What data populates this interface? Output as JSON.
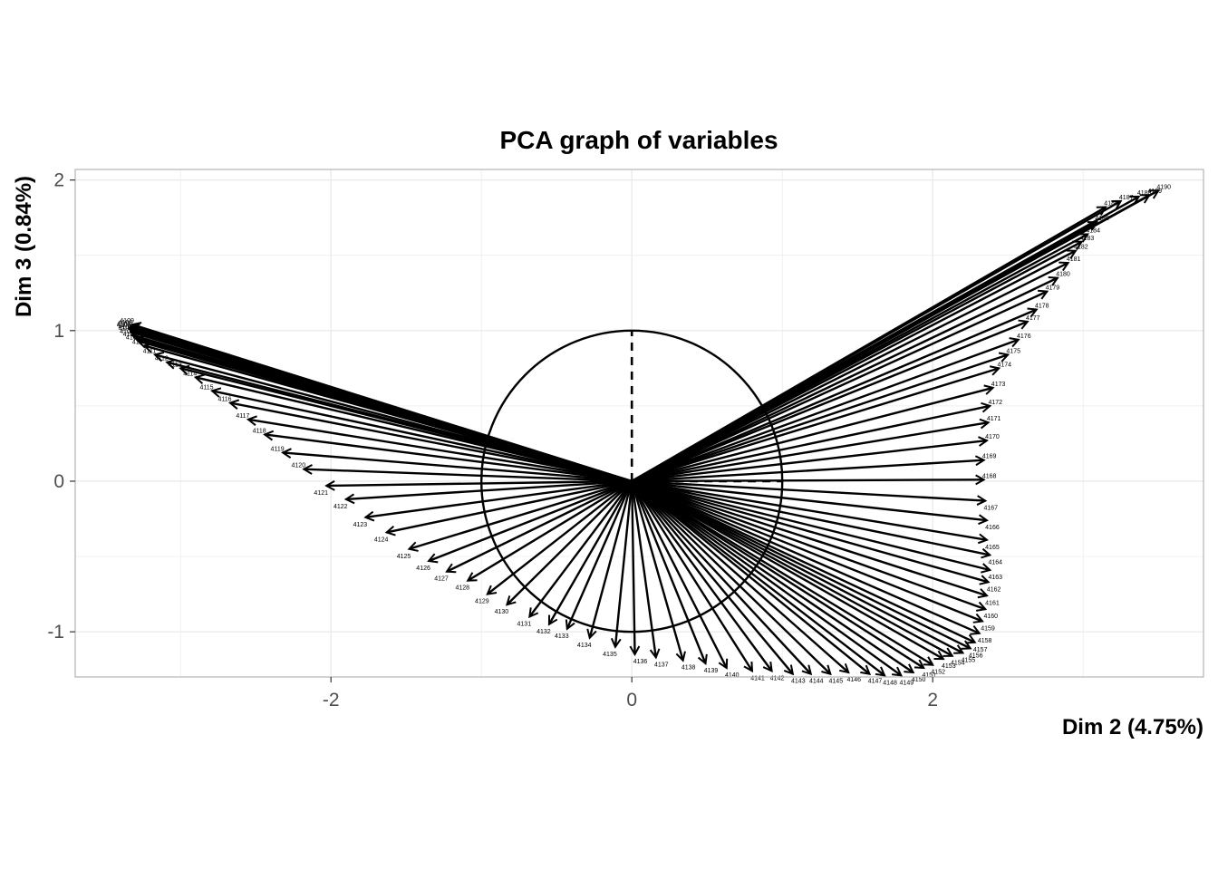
{
  "chart_data": {
    "type": "scatter",
    "title": "PCA graph of variables",
    "xlabel": "Dim 2 (4.75%)",
    "ylabel": "Dim 3 (0.84%)",
    "xlim": [
      -3.7,
      3.8
    ],
    "ylim": [
      -1.3,
      2.07
    ],
    "x_ticks": [
      -2,
      0,
      2
    ],
    "y_ticks": [
      -1,
      0,
      1,
      2
    ],
    "x_tick_labels": [
      "-2",
      "0",
      "2"
    ],
    "y_tick_labels": [
      "-1",
      "0",
      "1",
      "2"
    ],
    "grid": true,
    "unit_circle": true,
    "colors": {
      "arrows": "#000000",
      "grid": "#ebebeb",
      "panel_border": "#b3b3b3",
      "tick_text": "#4d4d4d"
    },
    "variables": [
      {
        "label": "4109",
        "x": -3.32,
        "y": 1.04
      },
      {
        "label": "4108",
        "x": -3.33,
        "y": 1.03
      },
      {
        "label": "4107",
        "x": -3.34,
        "y": 1.02
      },
      {
        "label": "4106",
        "x": -3.34,
        "y": 1.01
      },
      {
        "label": "4105",
        "x": -3.33,
        "y": 1.0
      },
      {
        "label": "4104",
        "x": -3.33,
        "y": 0.99
      },
      {
        "label": "4103",
        "x": -3.32,
        "y": 0.97
      },
      {
        "label": "4102",
        "x": -3.3,
        "y": 0.95
      },
      {
        "label": "4101",
        "x": -3.28,
        "y": 0.93
      },
      {
        "label": "4110",
        "x": -3.24,
        "y": 0.9
      },
      {
        "label": "4111",
        "x": -3.17,
        "y": 0.84
      },
      {
        "label": "4112",
        "x": -3.09,
        "y": 0.79
      },
      {
        "label": "4113",
        "x": -3.0,
        "y": 0.75
      },
      {
        "label": "4114",
        "x": -2.9,
        "y": 0.69
      },
      {
        "label": "4115",
        "x": -2.79,
        "y": 0.6
      },
      {
        "label": "4116",
        "x": -2.67,
        "y": 0.52
      },
      {
        "label": "4117",
        "x": -2.55,
        "y": 0.41
      },
      {
        "label": "4118",
        "x": -2.44,
        "y": 0.31
      },
      {
        "label": "4119",
        "x": -2.32,
        "y": 0.19
      },
      {
        "label": "4120",
        "x": -2.18,
        "y": 0.08
      },
      {
        "label": "4121",
        "x": -2.03,
        "y": -0.03
      },
      {
        "label": "4122",
        "x": -1.9,
        "y": -0.12
      },
      {
        "label": "4123",
        "x": -1.77,
        "y": -0.24
      },
      {
        "label": "4124",
        "x": -1.63,
        "y": -0.34
      },
      {
        "label": "4125",
        "x": -1.48,
        "y": -0.45
      },
      {
        "label": "4126",
        "x": -1.35,
        "y": -0.53
      },
      {
        "label": "4127",
        "x": -1.23,
        "y": -0.6
      },
      {
        "label": "4128",
        "x": -1.09,
        "y": -0.66
      },
      {
        "label": "4129",
        "x": -0.96,
        "y": -0.75
      },
      {
        "label": "4130",
        "x": -0.83,
        "y": -0.82
      },
      {
        "label": "4131",
        "x": -0.68,
        "y": -0.9
      },
      {
        "label": "4132",
        "x": -0.55,
        "y": -0.95
      },
      {
        "label": "4133",
        "x": -0.43,
        "y": -0.98
      },
      {
        "label": "4134",
        "x": -0.28,
        "y": -1.04
      },
      {
        "label": "4135",
        "x": -0.11,
        "y": -1.1
      },
      {
        "label": "4136",
        "x": 0.02,
        "y": -1.15
      },
      {
        "label": "4137",
        "x": 0.16,
        "y": -1.17
      },
      {
        "label": "4138",
        "x": 0.34,
        "y": -1.19
      },
      {
        "label": "4139",
        "x": 0.49,
        "y": -1.21
      },
      {
        "label": "4140",
        "x": 0.63,
        "y": -1.24
      },
      {
        "label": "4141",
        "x": 0.8,
        "y": -1.26
      },
      {
        "label": "4142",
        "x": 0.93,
        "y": -1.26
      },
      {
        "label": "4143",
        "x": 1.07,
        "y": -1.28
      },
      {
        "label": "4144",
        "x": 1.19,
        "y": -1.28
      },
      {
        "label": "4145",
        "x": 1.32,
        "y": -1.28
      },
      {
        "label": "4146",
        "x": 1.44,
        "y": -1.27
      },
      {
        "label": "4147",
        "x": 1.58,
        "y": -1.28
      },
      {
        "label": "4148",
        "x": 1.68,
        "y": -1.29
      },
      {
        "label": "4149",
        "x": 1.79,
        "y": -1.29
      },
      {
        "label": "4150",
        "x": 1.87,
        "y": -1.27
      },
      {
        "label": "4151",
        "x": 1.94,
        "y": -1.24
      },
      {
        "label": "4152",
        "x": 2.0,
        "y": -1.22
      },
      {
        "label": "4153",
        "x": 2.07,
        "y": -1.18
      },
      {
        "label": "4154",
        "x": 2.13,
        "y": -1.16
      },
      {
        "label": "4155",
        "x": 2.2,
        "y": -1.14
      },
      {
        "label": "4156",
        "x": 2.25,
        "y": -1.11
      },
      {
        "label": "4157",
        "x": 2.28,
        "y": -1.07
      },
      {
        "label": "4158",
        "x": 2.31,
        "y": -1.01
      },
      {
        "label": "4159",
        "x": 2.33,
        "y": -0.93
      },
      {
        "label": "4160",
        "x": 2.35,
        "y": -0.85
      },
      {
        "label": "4161",
        "x": 2.36,
        "y": -0.76
      },
      {
        "label": "4162",
        "x": 2.37,
        "y": -0.67
      },
      {
        "label": "4163",
        "x": 2.38,
        "y": -0.59
      },
      {
        "label": "4164",
        "x": 2.38,
        "y": -0.49
      },
      {
        "label": "4165",
        "x": 2.36,
        "y": -0.39
      },
      {
        "label": "4166",
        "x": 2.36,
        "y": -0.26
      },
      {
        "label": "4167",
        "x": 2.35,
        "y": -0.13
      },
      {
        "label": "4168",
        "x": 2.34,
        "y": 0.01
      },
      {
        "label": "4169",
        "x": 2.34,
        "y": 0.14
      },
      {
        "label": "4170",
        "x": 2.36,
        "y": 0.27
      },
      {
        "label": "4171",
        "x": 2.37,
        "y": 0.39
      },
      {
        "label": "4172",
        "x": 2.38,
        "y": 0.5
      },
      {
        "label": "4173",
        "x": 2.4,
        "y": 0.62
      },
      {
        "label": "4174",
        "x": 2.44,
        "y": 0.75
      },
      {
        "label": "4175",
        "x": 2.5,
        "y": 0.84
      },
      {
        "label": "4176",
        "x": 2.57,
        "y": 0.94
      },
      {
        "label": "4177",
        "x": 2.63,
        "y": 1.06
      },
      {
        "label": "4178",
        "x": 2.69,
        "y": 1.14
      },
      {
        "label": "4179",
        "x": 2.76,
        "y": 1.26
      },
      {
        "label": "4180",
        "x": 2.83,
        "y": 1.35
      },
      {
        "label": "4181",
        "x": 2.9,
        "y": 1.45
      },
      {
        "label": "4182",
        "x": 2.95,
        "y": 1.53
      },
      {
        "label": "4183",
        "x": 2.99,
        "y": 1.59
      },
      {
        "label": "4184",
        "x": 3.03,
        "y": 1.64
      },
      {
        "label": "4185",
        "x": 3.09,
        "y": 1.72
      },
      {
        "label": "4186",
        "x": 3.15,
        "y": 1.82
      },
      {
        "label": "4187",
        "x": 3.25,
        "y": 1.86
      },
      {
        "label": "4188",
        "x": 3.37,
        "y": 1.89
      },
      {
        "label": "4189",
        "x": 3.44,
        "y": 1.9
      },
      {
        "label": "4190",
        "x": 3.5,
        "y": 1.93
      }
    ]
  }
}
